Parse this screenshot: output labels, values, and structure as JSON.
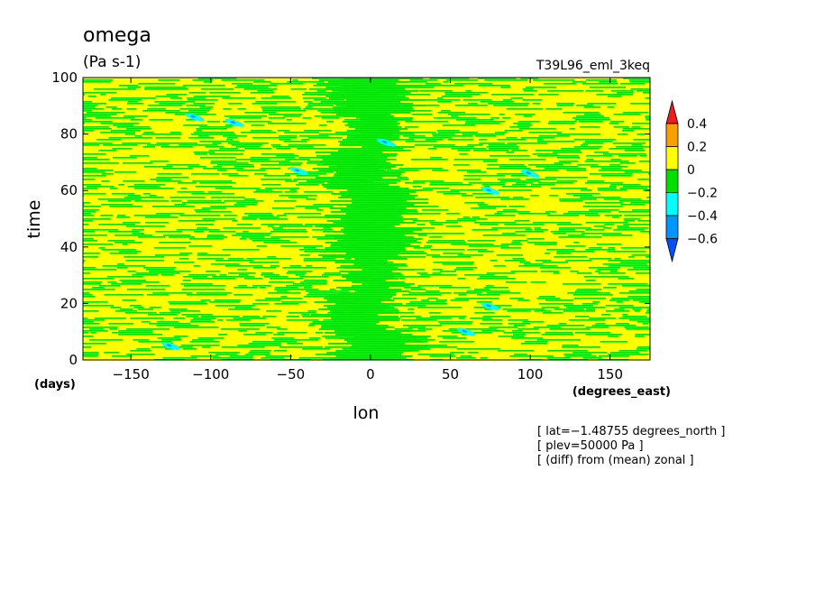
{
  "chart_data": {
    "type": "heatmap",
    "title": "omega",
    "subtitle": "(Pa s-1)",
    "run_label": "T39L96_eml_3keq",
    "xlabel": "lon",
    "ylabel": "time",
    "x_unit_label": "(degrees_east)",
    "y_unit_label": "(days)",
    "xlim": [
      -180,
      175
    ],
    "ylim": [
      0,
      100
    ],
    "x_ticks": [
      -150,
      -100,
      -50,
      0,
      50,
      100,
      150
    ],
    "x_tick_labels": [
      "−150",
      "−100",
      "−50",
      "0",
      "50",
      "100",
      "150"
    ],
    "y_ticks": [
      0,
      20,
      40,
      60,
      80,
      100
    ],
    "y_tick_labels": [
      "0",
      "20",
      "40",
      "60",
      "80",
      "100"
    ],
    "colorbar": {
      "levels": [
        0.4,
        0.2,
        0,
        -0.2,
        -0.4,
        -0.6
      ],
      "level_labels": [
        "0.4",
        "0.2",
        "0",
        "−0.2",
        "−0.4",
        "−0.6"
      ],
      "colors": [
        "#ee1c1c",
        "#f7a000",
        "#ffff00",
        "#00e000",
        "#00ffff",
        "#0096ff",
        "#0050ff"
      ],
      "extend": "both"
    },
    "annotations": [
      "[ lat=−1.48755 degrees_north ]",
      "[ plev=50000 Pa ]",
      "[ (diff) from (mean) zonal ]"
    ],
    "field_description": "zonal anomaly of omega mostly between -0.2 and 0.2 Pa s-1 (green/yellow horizontal streaks); band near lon 0 predominantly negative (green); scattered cyan (-0.4 to -0.2) westward-tilted patches",
    "features": [
      {
        "lon": -110,
        "time": 86,
        "level": -0.3
      },
      {
        "lon": -85,
        "time": 84,
        "level": -0.3
      },
      {
        "lon": -45,
        "time": 67,
        "level": -0.3
      },
      {
        "lon": 10,
        "time": 77,
        "level": -0.3
      },
      {
        "lon": -125,
        "time": 5,
        "level": -0.3
      },
      {
        "lon": 60,
        "time": 10,
        "level": -0.3
      },
      {
        "lon": 75,
        "time": 60,
        "level": -0.3
      },
      {
        "lon": 100,
        "time": 66,
        "level": -0.3
      },
      {
        "lon": 75,
        "time": 19,
        "level": -0.3
      }
    ]
  }
}
